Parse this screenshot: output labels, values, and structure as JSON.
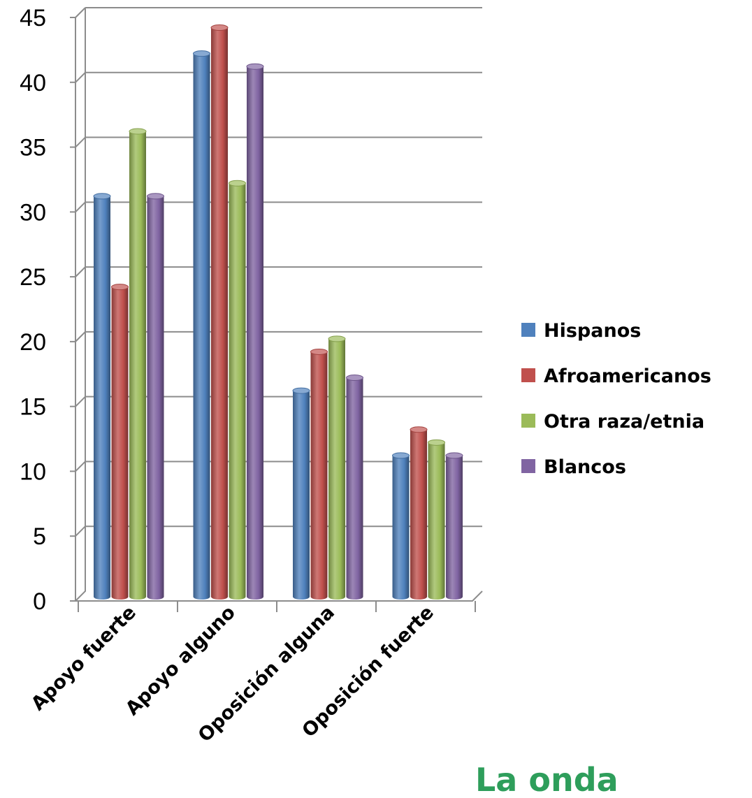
{
  "chart_data": {
    "type": "bar",
    "categories": [
      "Apoyo fuerte",
      "Apoyo alguno",
      "Oposición alguna",
      "Oposición fuerte"
    ],
    "series": [
      {
        "name": "Hispanos",
        "values": [
          31,
          42,
          16,
          11
        ],
        "color": "#4F81BD"
      },
      {
        "name": "Afroamericanos",
        "values": [
          24,
          44,
          19,
          13
        ],
        "color": "#C0504D"
      },
      {
        "name": "Otra raza/etnia",
        "values": [
          36,
          32,
          20,
          12
        ],
        "color": "#9BBB59"
      },
      {
        "name": "Blancos",
        "values": [
          31,
          41,
          17,
          11
        ],
        "color": "#8064A2"
      }
    ],
    "yticks": [
      "0",
      "5",
      "10",
      "15",
      "20",
      "25",
      "30",
      "35",
      "40",
      "45"
    ],
    "ylim": [
      0,
      45
    ],
    "grid": true,
    "legend_position": "right",
    "title": "",
    "xlabel": "",
    "ylabel": ""
  },
  "logo": {
    "text": "La onda",
    "color": "#2E9E5B"
  }
}
